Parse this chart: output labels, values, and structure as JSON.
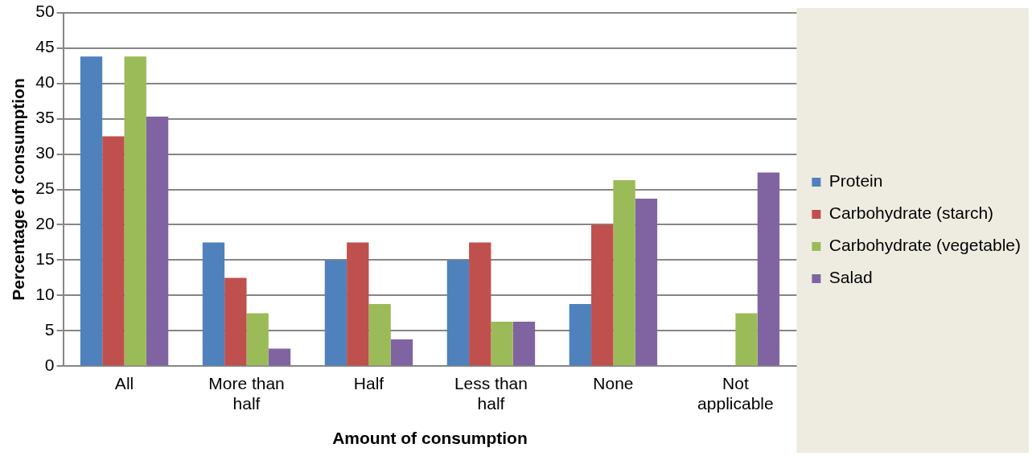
{
  "chart_data": {
    "type": "bar",
    "xlabel": "Amount of consumption",
    "ylabel": "Percentage of consumption",
    "categories": [
      "All",
      "More than half",
      "Half",
      "Less than half",
      "None",
      "Not applicable"
    ],
    "series": [
      {
        "name": "Protein",
        "color": "#4f81bd",
        "values": [
          43.8,
          17.5,
          15,
          15,
          8.8,
          0
        ]
      },
      {
        "name": "Carbohydrate (starch)",
        "color": "#c0504d",
        "values": [
          32.5,
          12.5,
          17.5,
          17.5,
          20,
          0
        ]
      },
      {
        "name": "Carbohydrate (vegetable)",
        "color": "#9bbb59",
        "values": [
          43.8,
          7.5,
          8.8,
          6.3,
          26.3,
          7.5
        ]
      },
      {
        "name": "Salad",
        "color": "#8064a2",
        "values": [
          35.3,
          2.5,
          3.8,
          6.3,
          23.7,
          27.4
        ]
      }
    ],
    "ylim": [
      0,
      50
    ],
    "yticks": [
      0,
      5,
      10,
      15,
      20,
      25,
      30,
      35,
      40,
      45,
      50
    ],
    "grid": "y",
    "legend": "right"
  }
}
